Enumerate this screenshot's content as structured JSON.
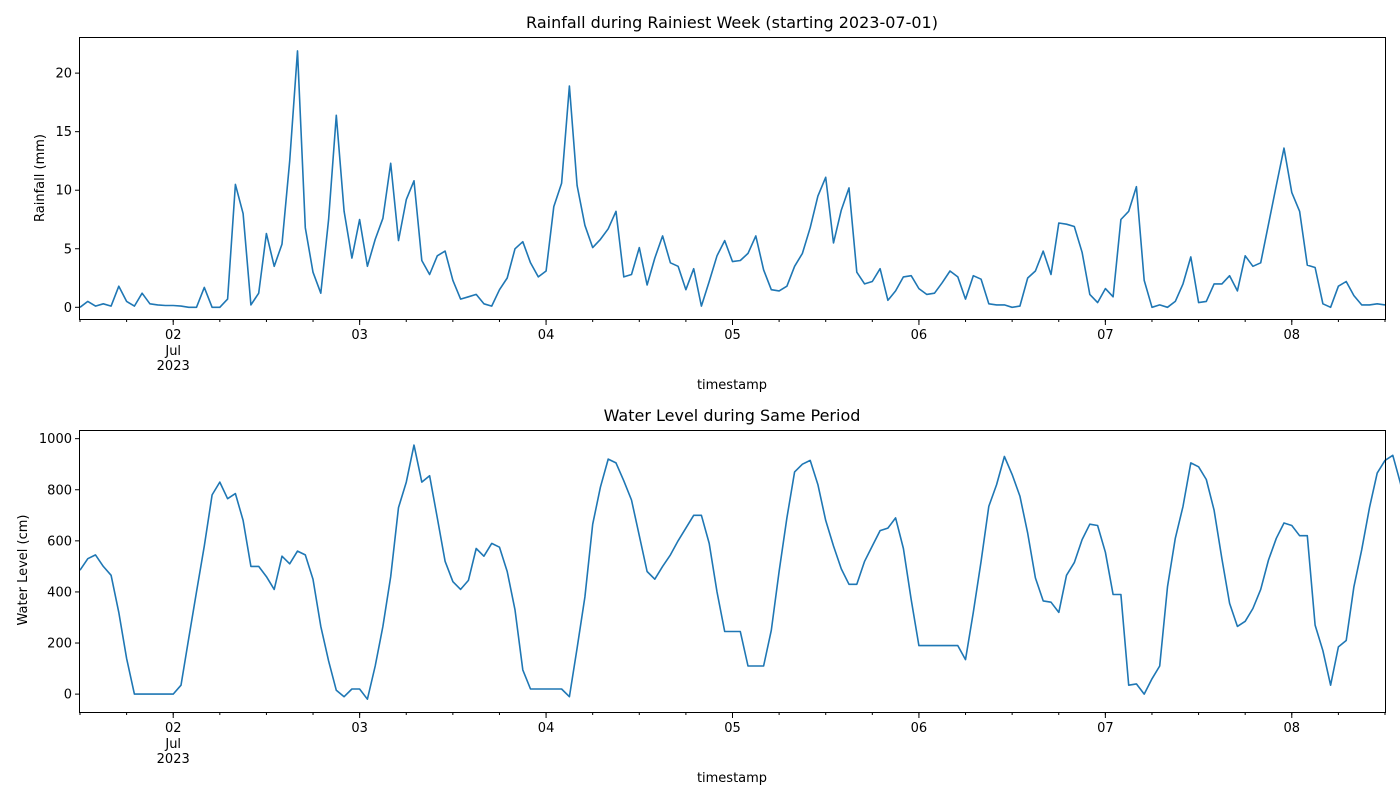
{
  "chart_data": [
    {
      "type": "line",
      "title": "Rainfall during Rainiest Week (starting 2023-07-01)",
      "xlabel": "timestamp",
      "ylabel": "Rainfall (mm)",
      "x_start": "2023-07-01T12:00",
      "x_end": "2023-07-08T12:00",
      "sample_interval_hours": 1,
      "xlim": [
        "2023-07-01T12:00",
        "2023-07-08T12:00"
      ],
      "ylim": [
        -1,
        23
      ],
      "yticks": [
        0,
        5,
        10,
        15,
        20
      ],
      "xtick_labels": [
        {
          "major": "02",
          "sub": "Jul",
          "year": "2023"
        },
        {
          "major": "03"
        },
        {
          "major": "04"
        },
        {
          "major": "05"
        },
        {
          "major": "06"
        },
        {
          "major": "07"
        },
        {
          "major": "08"
        }
      ],
      "grid": false,
      "series": [
        {
          "color": "#1f77b4",
          "values": [
            0.0,
            0.5,
            0.1,
            0.3,
            0.1,
            1.8,
            0.5,
            0.1,
            1.2,
            0.3,
            0.2,
            0.15,
            0.15,
            0.1,
            0.0,
            0.0,
            1.7,
            0.0,
            0.0,
            0.7,
            10.5,
            8.0,
            0.2,
            1.2,
            6.3,
            3.5,
            5.4,
            12.5,
            21.9,
            6.8,
            3.0,
            1.2,
            7.5,
            16.4,
            8.2,
            4.2,
            7.5,
            3.5,
            5.8,
            7.6,
            12.3,
            5.7,
            9.2,
            10.8,
            4.0,
            2.8,
            4.4,
            4.8,
            2.3,
            0.7,
            0.9,
            1.1,
            0.3,
            0.1,
            1.5,
            2.5,
            5.0,
            5.6,
            3.8,
            2.6,
            3.1,
            8.6,
            10.6,
            18.9,
            10.4,
            7.0,
            5.1,
            5.8,
            6.7,
            8.2,
            2.6,
            2.8,
            5.1,
            1.9,
            4.2,
            6.1,
            3.8,
            3.5,
            1.5,
            3.3,
            0.1,
            2.2,
            4.4,
            5.7,
            3.9,
            4.0,
            4.6,
            6.1,
            3.2,
            1.5,
            1.4,
            1.8,
            3.5,
            4.6,
            6.8,
            9.5,
            11.1,
            5.5,
            8.3,
            10.2,
            3.0,
            2.0,
            2.2,
            3.3,
            0.6,
            1.4,
            2.6,
            2.7,
            1.6,
            1.1,
            1.2,
            2.1,
            3.1,
            2.6,
            0.7,
            2.7,
            2.4,
            0.3,
            0.2,
            0.2,
            0.0,
            0.1,
            2.5,
            3.1,
            4.8,
            2.8,
            7.2,
            7.1,
            6.9,
            4.7,
            1.1,
            0.4,
            1.6,
            0.9,
            7.5,
            8.2,
            10.3,
            2.3,
            0.0,
            0.2,
            0.0,
            0.5,
            2.0,
            4.3,
            0.4,
            0.5,
            2.0,
            2.0,
            2.7,
            1.4,
            4.4,
            3.5,
            3.8,
            7.1,
            10.4,
            13.6,
            9.8,
            8.2,
            3.6,
            3.4,
            0.3,
            0.0,
            1.8,
            2.2,
            1.0,
            0.2,
            0.2,
            0.3,
            0.2
          ]
        }
      ]
    },
    {
      "type": "line",
      "title": "Water Level during Same Period",
      "xlabel": "timestamp",
      "ylabel": "Water Level (cm)",
      "x_start": "2023-07-01T12:00",
      "x_end": "2023-07-08T12:00",
      "sample_interval_hours": 1,
      "xlim": [
        "2023-07-01T12:00",
        "2023-07-08T12:00"
      ],
      "ylim": [
        -70,
        1030
      ],
      "yticks": [
        0,
        200,
        400,
        600,
        800,
        1000
      ],
      "xtick_labels": [
        {
          "major": "02",
          "sub": "Jul",
          "year": "2023"
        },
        {
          "major": "03"
        },
        {
          "major": "04"
        },
        {
          "major": "05"
        },
        {
          "major": "06"
        },
        {
          "major": "07"
        },
        {
          "major": "08"
        }
      ],
      "grid": false,
      "series": [
        {
          "color": "#1f77b4",
          "values": [
            485,
            530,
            545,
            500,
            465,
            320,
            140,
            0,
            0,
            0,
            0,
            0,
            0,
            35,
            220,
            400,
            580,
            780,
            830,
            765,
            785,
            680,
            500,
            500,
            460,
            410,
            540,
            510,
            560,
            545,
            450,
            265,
            130,
            15,
            -10,
            20,
            20,
            -20,
            110,
            265,
            460,
            730,
            830,
            975,
            830,
            855,
            690,
            520,
            440,
            410,
            445,
            570,
            540,
            590,
            575,
            480,
            330,
            95,
            20,
            20,
            20,
            20,
            20,
            -10,
            180,
            380,
            665,
            810,
            920,
            905,
            835,
            760,
            620,
            480,
            450,
            500,
            545,
            600,
            650,
            700,
            700,
            590,
            400,
            245,
            245,
            245,
            110,
            110,
            110,
            250,
            480,
            690,
            870,
            900,
            915,
            820,
            680,
            580,
            490,
            430,
            430,
            520,
            580,
            640,
            650,
            690,
            570,
            370,
            190,
            190,
            190,
            190,
            190,
            190,
            135,
            320,
            520,
            735,
            820,
            930,
            860,
            775,
            630,
            455,
            365,
            360,
            320,
            465,
            515,
            605,
            665,
            660,
            555,
            390,
            390,
            35,
            40,
            0,
            60,
            110,
            420,
            610,
            735,
            905,
            890,
            840,
            720,
            530,
            355,
            265,
            285,
            335,
            410,
            525,
            610,
            670,
            660,
            620,
            620,
            270,
            170,
            35,
            185,
            210,
            420,
            565,
            730,
            865,
            915,
            935,
            825,
            655
          ]
        }
      ]
    }
  ]
}
